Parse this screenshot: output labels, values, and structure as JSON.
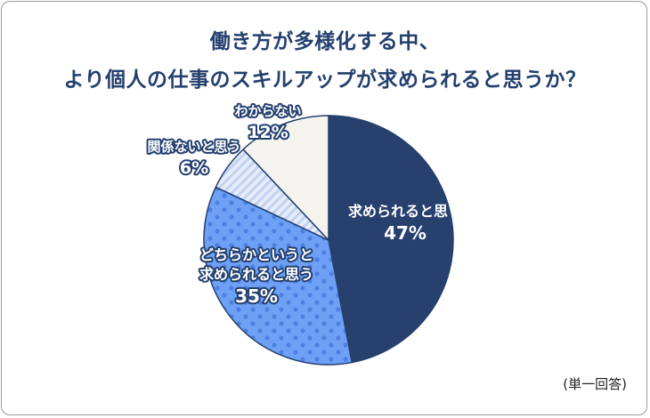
{
  "title_line1": "働き方が多様化する中、",
  "title_line2": "より個人の仕事のスキルアップが求められると思うか？",
  "note": "(単一回答)",
  "chart_data": {
    "type": "pie",
    "start_angle_deg": 0,
    "direction": "clockwise",
    "slices": [
      {
        "label_lines": [
          "求められると思う"
        ],
        "value": 47,
        "value_label": "47%",
        "color": "#27406e",
        "pattern": "solid"
      },
      {
        "label_lines": [
          "どちらかというと",
          "求められると思う"
        ],
        "value": 35,
        "value_label": "35%",
        "color": "#6ea0f5",
        "pattern": "dots"
      },
      {
        "label_lines": [
          "関係ないと思う"
        ],
        "value": 6,
        "value_label": "6%",
        "color": "#dfe7f8",
        "pattern": "stripes"
      },
      {
        "label_lines": [
          "わからない"
        ],
        "value": 12,
        "value_label": "12%",
        "color": "#f4f3ee",
        "pattern": "solid"
      }
    ]
  }
}
